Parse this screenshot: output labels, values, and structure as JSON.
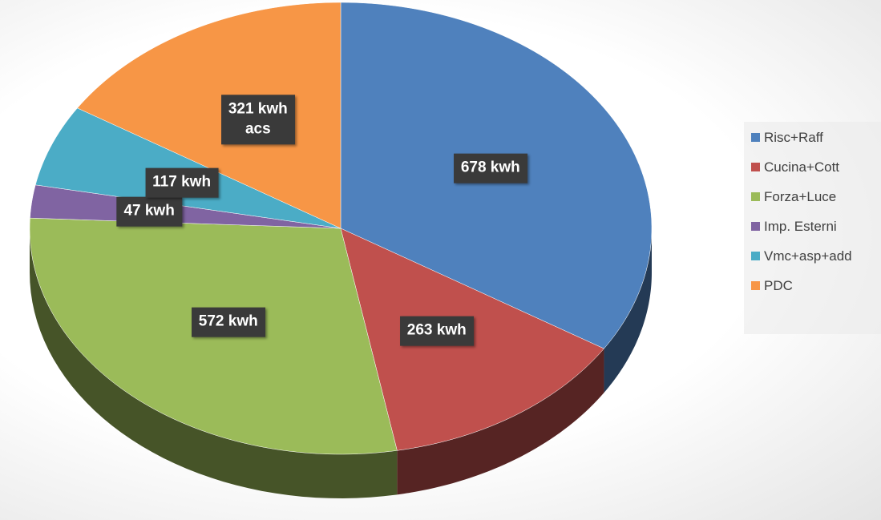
{
  "chart_data": {
    "type": "pie",
    "categories": [
      "Risc+Raff",
      "Cucina+Cott",
      "Forza+Luce",
      "Imp. Esterni",
      "Vmc+asp+add",
      "PDC"
    ],
    "values": [
      678,
      263,
      572,
      47,
      117,
      321
    ],
    "value_labels": [
      "678 kwh",
      "263 kwh",
      "572 kwh",
      "47 kwh",
      "117 kwh",
      "321 kwh\nacs"
    ],
    "colors": [
      "#4f81bd",
      "#c0504d",
      "#9bbb59",
      "#8064a2",
      "#4bacc6",
      "#f79646"
    ],
    "legend": "right"
  }
}
